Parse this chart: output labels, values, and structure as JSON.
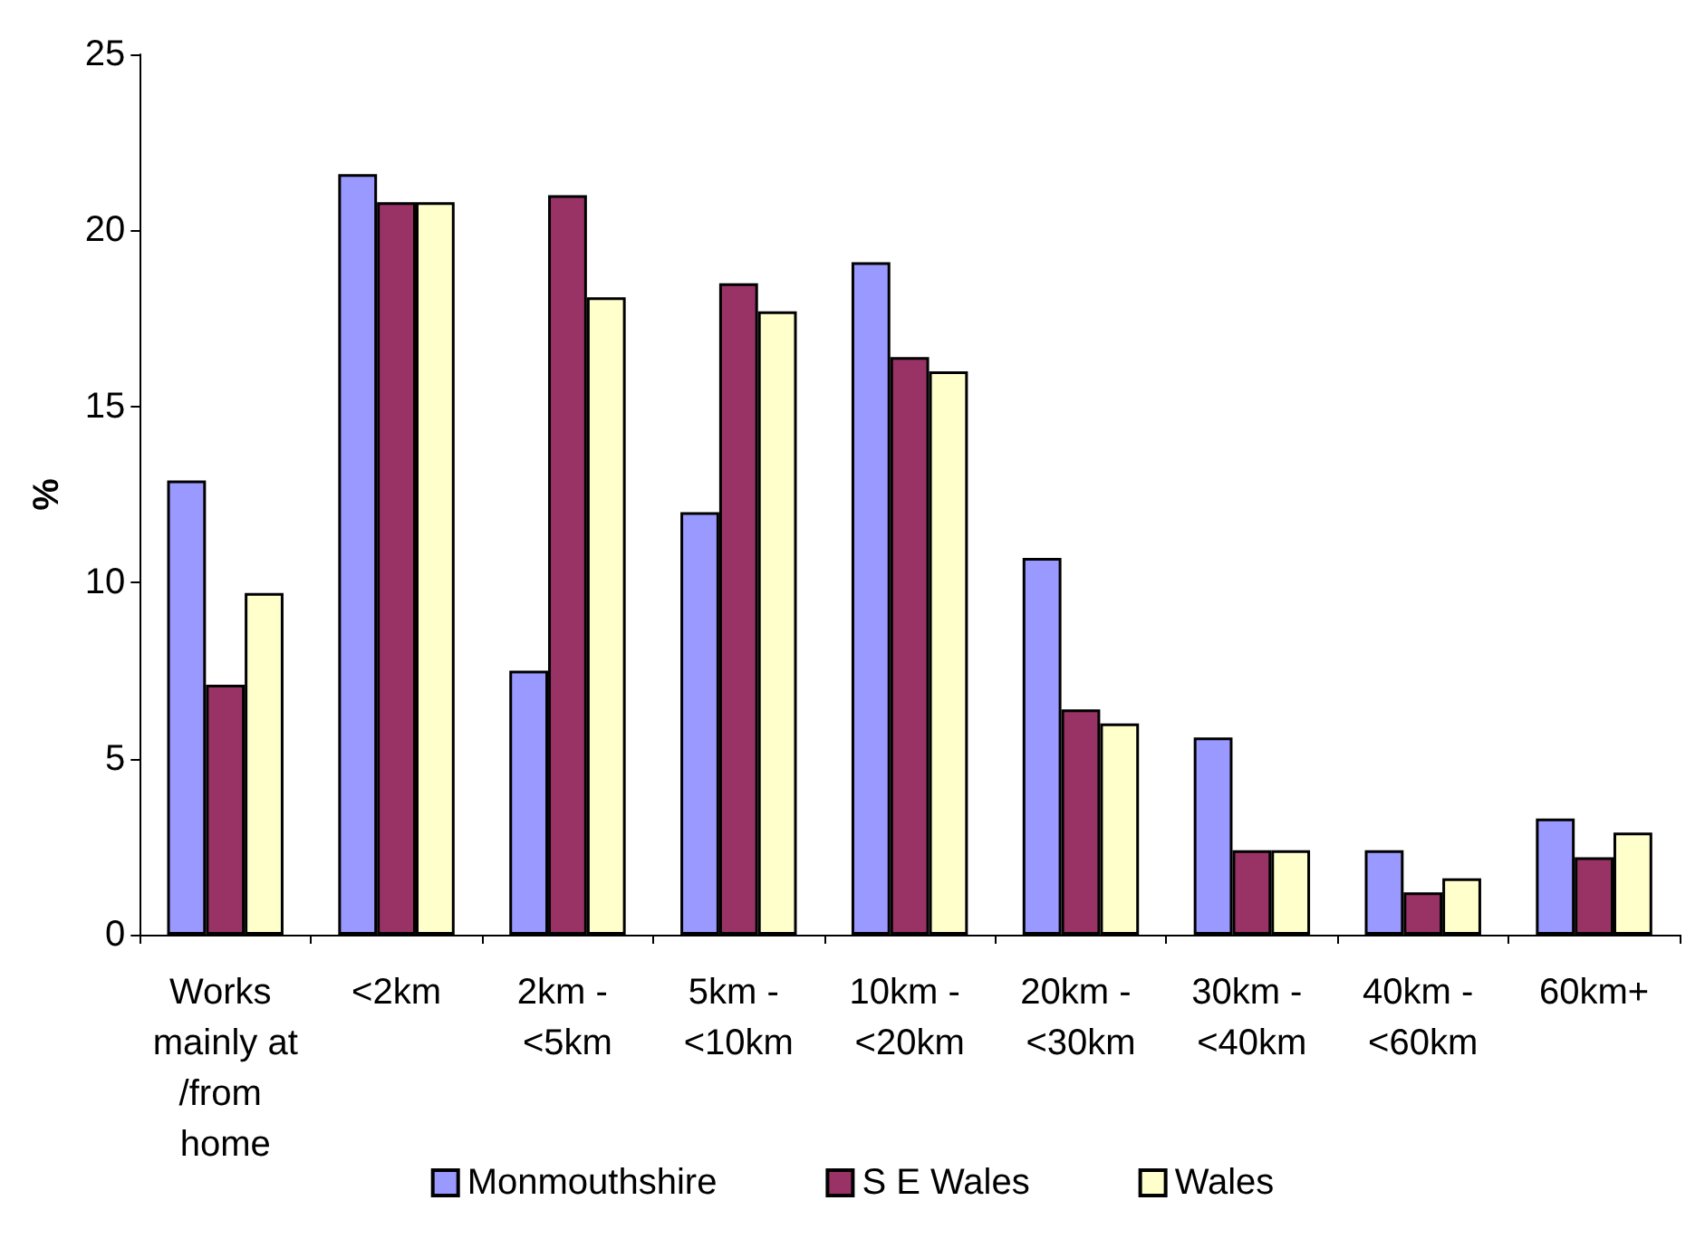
{
  "chart_data": {
    "type": "bar",
    "ylabel": "%",
    "categories": [
      "Works mainly at/from home",
      "<2km",
      "2km - <5km",
      "5km - <10km",
      "10km - <20km",
      "20km - <30km",
      "30km - <40km",
      "40km - <60km",
      "60km+"
    ],
    "series": [
      {
        "name": "Monmouthshire",
        "color": "#9999ff",
        "values": [
          12.9,
          21.6,
          7.5,
          12.0,
          19.1,
          10.7,
          5.6,
          2.4,
          3.3
        ]
      },
      {
        "name": "S E Wales",
        "color": "#993366",
        "values": [
          7.1,
          20.8,
          21.0,
          18.5,
          16.4,
          6.4,
          2.4,
          1.2,
          2.2
        ]
      },
      {
        "name": "Wales",
        "color": "#ffffcc",
        "values": [
          9.7,
          20.8,
          18.1,
          17.7,
          16.0,
          6.0,
          2.4,
          1.6,
          2.9
        ]
      }
    ],
    "ylim": [
      0,
      25
    ],
    "yticks": [
      0,
      5,
      10,
      15,
      20,
      25
    ],
    "grid": false,
    "legend": "bottom"
  }
}
